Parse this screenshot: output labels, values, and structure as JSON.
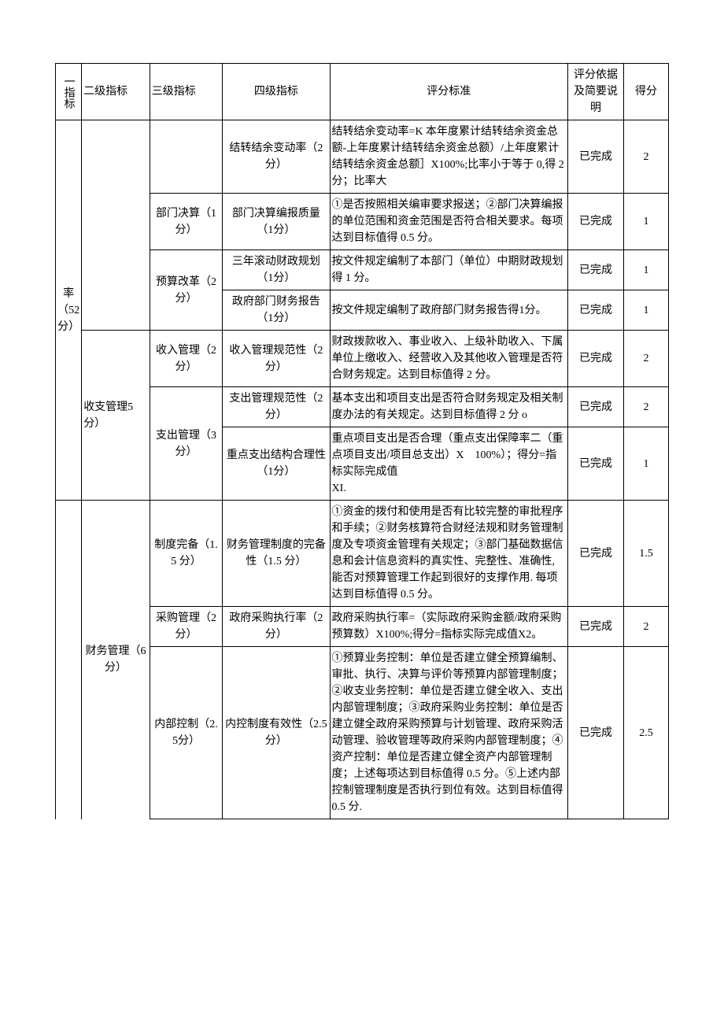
{
  "header": {
    "l1": "一指标",
    "l2": "二级指标",
    "l3": "三级指标",
    "l4": "四级指标",
    "std": "评分标准",
    "basis": "评分依据及简要说明",
    "score": "得分"
  },
  "l1_label": "率（52分）",
  "rows": [
    {
      "l4": "结转结余变动率（2分）",
      "std": "结转结余变动率=K 本年度累计结转结余资金总额-上年度累计结转结余资金总额）/上年度累计结转结余资金总额］X100%;比率小于等于 0,得 2 分；比率大",
      "basis": "已完成",
      "score": "2"
    },
    {
      "l3": "部门决算（1分）",
      "l4": "部门决算编报质量（1分）",
      "std": "①是否按照相关编审要求报送；②部门决算编报的单位范围和资金范围是否符合相关要求。每项达到目标值得 0.5 分。",
      "basis": "已完成",
      "score": "1"
    },
    {
      "l3": "预算改革（2分）",
      "l4": "三年滚动财政规划（1分）",
      "std": "按文件规定编制了本部门（单位）中期财政规划得 1 分。",
      "basis": "已完成",
      "score": "1"
    },
    {
      "l4": "政府部门财务报告（1分）",
      "std": "按文件规定编制了政府部门财务报告得1分。",
      "basis": "已完成",
      "score": "1"
    },
    {
      "l2": "收支管理5 分）",
      "l3": "收入管理（2分）",
      "l4": "收入管理规范性（2分）",
      "std": "财政拨款收入、事业收入、上级补助收入、下属单位上缴收入、经营收入及其他收入管理是否符合财务规定。达到目标值得 2 分。",
      "basis": "已完成",
      "score": "2"
    },
    {
      "l3": "支出管理（3分）",
      "l4": "支出管理规范性（2分）",
      "std": "基本支出和项目支出是否符合财务规定及相关制度办法的有关规定。达到目标值得 2 分 o",
      "basis": "已完成",
      "score": "2"
    },
    {
      "l4": "重点支出结构合理性（1分）",
      "std": "重点项目支出是否合理（重点支出保障率二（重点项目支出/项目总支出）X　100%）；得分=指标实际完成值\nXI.",
      "basis": "已完成",
      "score": "1"
    },
    {
      "l2": "财务管理（6分）",
      "l3": "制度完备（1.5 分）",
      "l4": "财务管理制度的完备性（1.5 分）",
      "std": "①资金的拨付和使用是否有比较完整的审批程序和手续；②财务核算符合财经法规和财务管理制度及专项资金管理有关规定；③部门基础数据信息和会计信息资料的真实性、完整性、准确性,能否对预算管理工作起到很好的支撑作用. 每项达到目标值得 0.5 分。",
      "basis": "已完成",
      "score": "1.5"
    },
    {
      "l3": "采购管理（2分）",
      "l4": "政府采购执行率（2分）",
      "std": "政府采购执行率=（实际政府采购金额/政府采购预算数）X100%;得分=指标实际完成值X2。",
      "basis": "已完成",
      "score": "2"
    },
    {
      "l3": "内部控制（2.5分）",
      "l4": "内控制度有效性（2.5 分）",
      "std": "①预算业务控制：单位是否建立健全预算编制、审批、执行、决算与评价等预算内部管理制度；②收支业务控制：单位是否建立健全收入、支出内部管理制度；③政府采购业务控制：单位是否建立健全政府采购预算与计划管理、政府采购活动管理、验收管理等政府采购内部管理制度；④资产控制：单位是否建立健全资产内部管理制度；上述每项达到目标值得 0.5 分。⑤上述内部控制管理制度是否执行到位有效。达到目标值得 0.5 分.",
      "basis": "已完成",
      "score": "2.5"
    }
  ]
}
